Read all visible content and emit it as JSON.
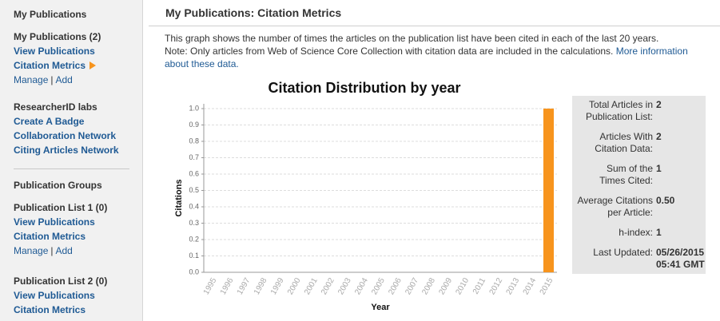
{
  "sidebar": {
    "heading": "My Publications",
    "my_publications": {
      "title": "My Publications (2)",
      "links": [
        "View Publications",
        "Citation Metrics"
      ],
      "manage": "Manage",
      "separator": "|",
      "add": "Add"
    },
    "labs": {
      "title": "ResearcherID labs",
      "links": [
        "Create A Badge",
        "Collaboration Network",
        "Citing Articles Network"
      ]
    },
    "groups": {
      "title": "Publication Groups",
      "lists": [
        {
          "title": "Publication List 1 (0)",
          "links": [
            "View Publications",
            "Citation Metrics"
          ],
          "manage": "Manage",
          "separator": "|",
          "add": "Add"
        },
        {
          "title": "Publication List 2 (0)",
          "links": [
            "View Publications",
            "Citation Metrics"
          ]
        }
      ]
    }
  },
  "main": {
    "header": "My Publications: Citation Metrics",
    "description": "This graph shows the number of times the articles on the publication list have been cited in each of the last 20 years.",
    "note": "Note: Only articles from Web of Science Core Collection with citation data are included in the calculations.",
    "more_link": "More information about these data."
  },
  "chart_data": {
    "type": "bar",
    "title": "Citation Distribution by year",
    "x_label": "Year",
    "y_label": "Citations",
    "categories": [
      "1995",
      "1996",
      "1997",
      "1998",
      "1999",
      "2000",
      "2001",
      "2002",
      "2003",
      "2004",
      "2005",
      "2006",
      "2007",
      "2008",
      "2009",
      "2010",
      "2011",
      "2012",
      "2013",
      "2014",
      "2015"
    ],
    "values": [
      0,
      0,
      0,
      0,
      0,
      0,
      0,
      0,
      0,
      0,
      0,
      0,
      0,
      0,
      0,
      0,
      0,
      0,
      0,
      0,
      1
    ],
    "color": "#f7941d",
    "ylim": [
      0,
      1
    ],
    "yticks": [
      {
        "value": 0,
        "label": "0.0"
      },
      0.1,
      0.2,
      0.3,
      0.4,
      0.5,
      0.6,
      0.7,
      0.8,
      0.9,
      {
        "value": 1,
        "label": "1.0"
      }
    ],
    "grid": true
  },
  "stats": [
    {
      "label": [
        "Total Articles in",
        "Publication List:"
      ],
      "value": [
        "2"
      ]
    },
    {
      "label": [
        "Articles With",
        "Citation Data:"
      ],
      "value": [
        "2"
      ]
    },
    {
      "label": [
        "Sum of the",
        "Times Cited:"
      ],
      "value": [
        "1"
      ]
    },
    {
      "label": [
        "Average Citations",
        "per Article:"
      ],
      "value": [
        "0.50"
      ]
    },
    {
      "label": [
        "h-index:"
      ],
      "value": [
        "1"
      ]
    },
    {
      "label": [
        "Last Updated:"
      ],
      "value": [
        "05/26/2015",
        "05:41 GMT"
      ]
    }
  ]
}
